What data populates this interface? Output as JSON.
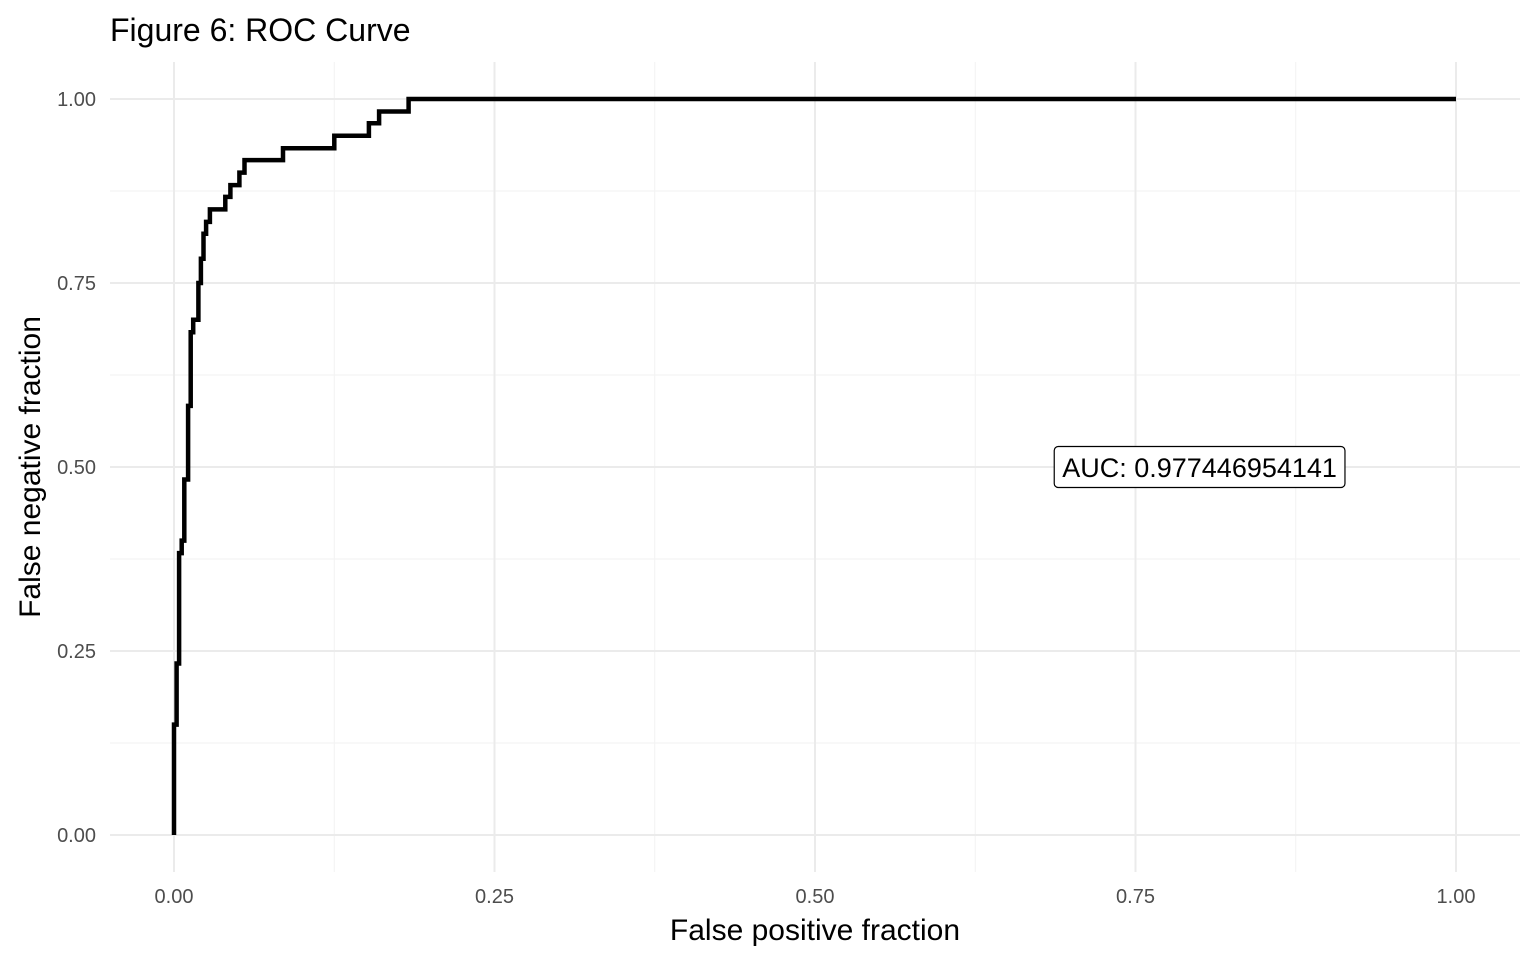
{
  "chart_data": {
    "type": "line",
    "title": "Figure 6: ROC Curve",
    "xlabel": "False positive fraction",
    "ylabel": "False negative fraction",
    "xlim": [
      0,
      1
    ],
    "ylim": [
      0,
      1
    ],
    "x_ticks": [
      0,
      0.25,
      0.5,
      0.75,
      1
    ],
    "x_tick_labels": [
      "0.00",
      "0.25",
      "0.50",
      "0.75",
      "1.00"
    ],
    "y_ticks": [
      0,
      0.25,
      0.5,
      0.75,
      1
    ],
    "y_tick_labels": [
      "0.00",
      "0.25",
      "0.50",
      "0.75",
      "1.00"
    ],
    "grid": true,
    "legend": "none",
    "line_color": "#000000",
    "annotation": {
      "text": "AUC:  0.977446954141",
      "x": 0.8,
      "y": 0.5
    },
    "series": [
      {
        "x": [
          0.0,
          0.0,
          0.002,
          0.002,
          0.004,
          0.004,
          0.006,
          0.006,
          0.008,
          0.008,
          0.011,
          0.011,
          0.013,
          0.013,
          0.015,
          0.015,
          0.019,
          0.019,
          0.021,
          0.021,
          0.023,
          0.023,
          0.025,
          0.025,
          0.028,
          0.028,
          0.03,
          0.03,
          0.032,
          0.032,
          0.04,
          0.04,
          0.044,
          0.044,
          0.051,
          0.051,
          0.055,
          0.055,
          0.085,
          0.085,
          0.125,
          0.125,
          0.152,
          0.152,
          0.16,
          0.16,
          0.183,
          0.183,
          1.0
        ],
        "y": [
          0.0,
          0.15,
          0.15,
          0.233,
          0.233,
          0.383,
          0.383,
          0.4,
          0.4,
          0.483,
          0.483,
          0.583,
          0.583,
          0.683,
          0.683,
          0.7,
          0.7,
          0.75,
          0.75,
          0.783,
          0.783,
          0.817,
          0.817,
          0.833,
          0.833,
          0.85,
          0.85,
          0.85,
          0.85,
          0.85,
          0.85,
          0.867,
          0.867,
          0.883,
          0.883,
          0.9,
          0.9,
          0.917,
          0.917,
          0.933,
          0.933,
          0.95,
          0.95,
          0.967,
          0.967,
          0.983,
          0.983,
          1.0,
          1.0
        ]
      }
    ]
  }
}
